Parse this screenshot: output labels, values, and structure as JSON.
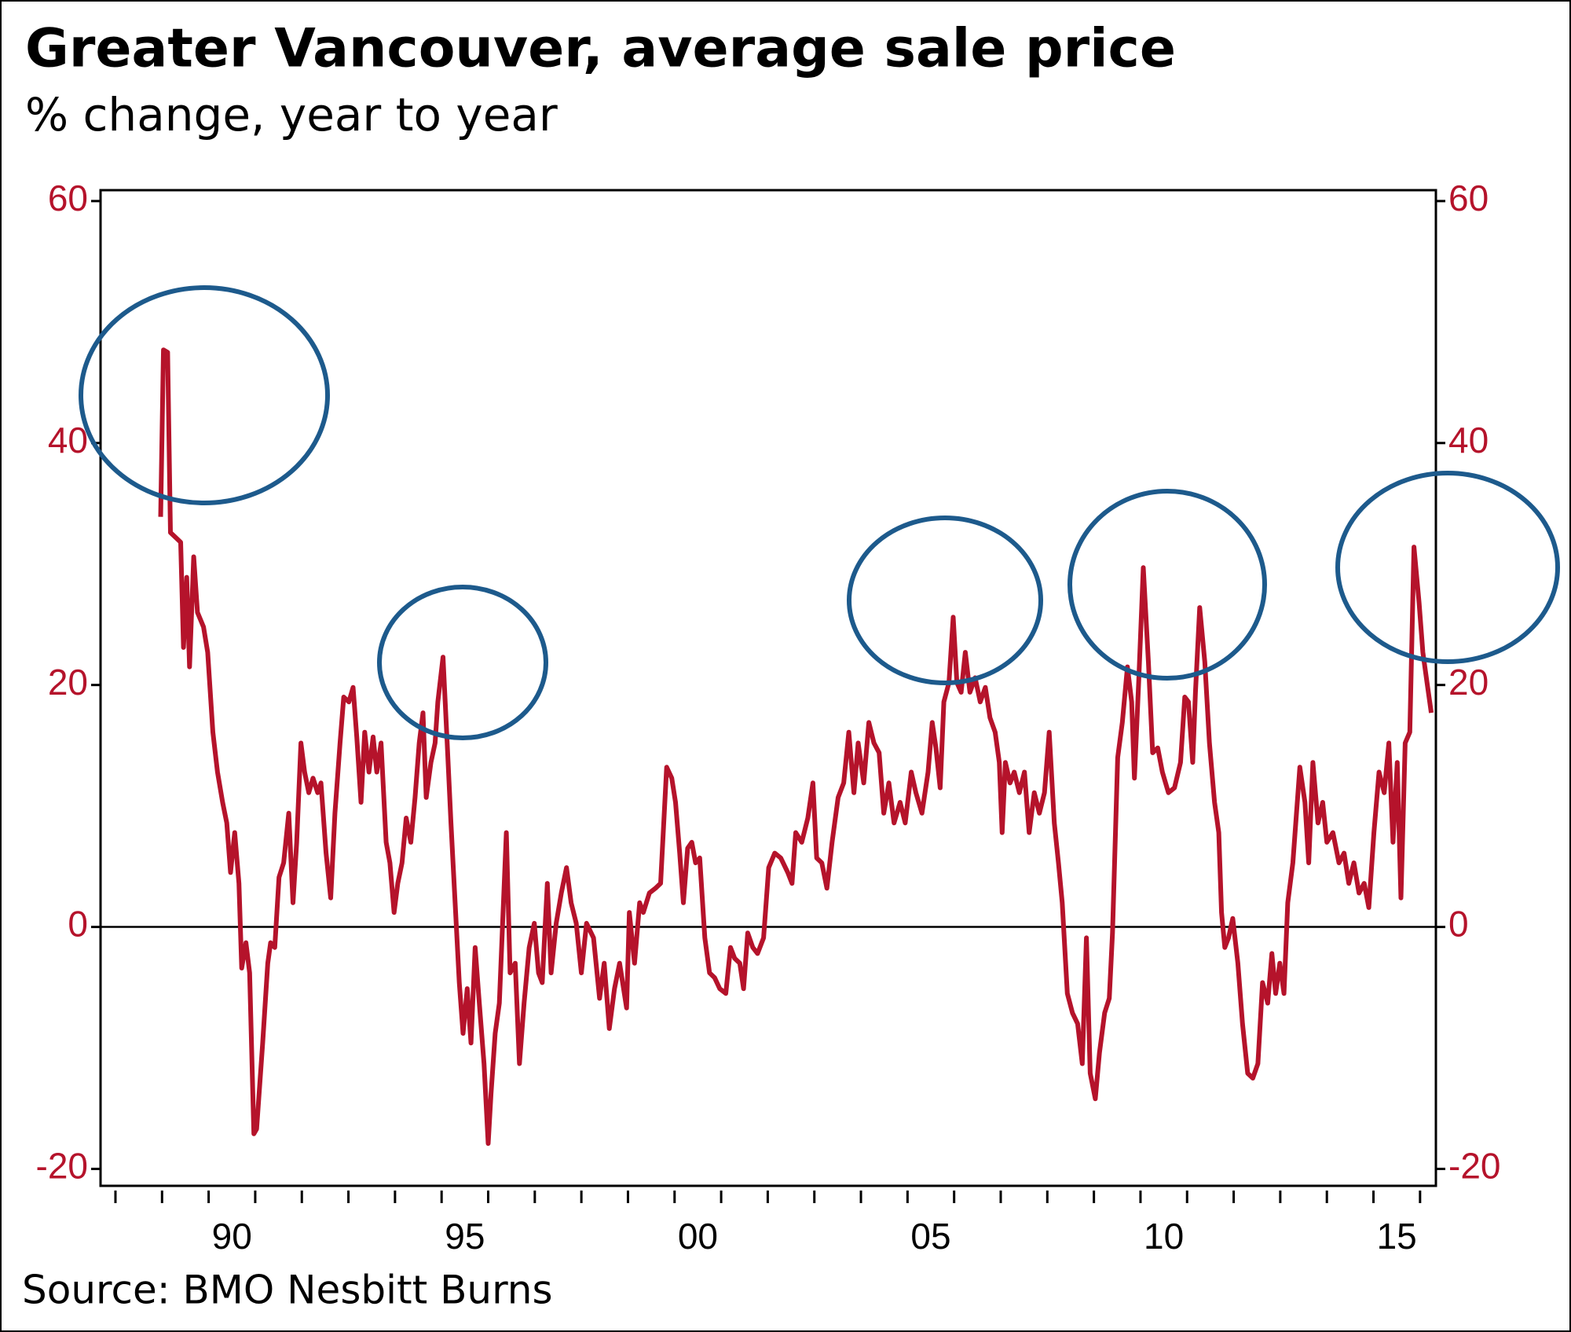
{
  "chart_data": {
    "type": "line",
    "title": "Greater Vancouver, average sale price",
    "subtitle": "% change, year to year",
    "source": "Source: BMO Nesbitt Burns",
    "color": "#b5132b",
    "x": [
      1988.97,
      1989.03,
      1989.12,
      1989.18,
      1989.29,
      1989.4,
      1989.46,
      1989.53,
      1989.59,
      1989.68,
      1989.76,
      1989.89,
      1989.98,
      1990.09,
      1990.19,
      1990.3,
      1990.39,
      1990.47,
      1990.56,
      1990.65,
      1990.71,
      1990.8,
      1990.88,
      1990.97,
      1991.03,
      1991.16,
      1991.27,
      1991.33,
      1991.42,
      1991.51,
      1991.61,
      1991.72,
      1991.81,
      1991.89,
      1991.98,
      1992.06,
      1992.15,
      1992.24,
      1992.34,
      1992.41,
      1992.52,
      1992.62,
      1992.71,
      1992.82,
      1992.9,
      1993.01,
      1993.1,
      1993.18,
      1993.27,
      1993.35,
      1993.44,
      1993.53,
      1993.61,
      1993.7,
      1993.81,
      1993.89,
      1993.98,
      1994.06,
      1994.15,
      1994.24,
      1994.34,
      1994.43,
      1994.52,
      1994.6,
      1994.67,
      1994.77,
      1994.86,
      1994.92,
      1995.03,
      1995.12,
      1995.2,
      1995.29,
      1995.38,
      1995.46,
      1995.55,
      1995.63,
      1995.72,
      1995.81,
      1995.91,
      1996.0,
      1996.06,
      1996.15,
      1996.24,
      1996.39,
      1996.47,
      1996.58,
      1996.67,
      1996.77,
      1996.88,
      1996.99,
      1997.08,
      1997.16,
      1997.27,
      1997.35,
      1997.46,
      1997.57,
      1997.68,
      1997.78,
      1997.89,
      1998.0,
      1998.11,
      1998.26,
      1998.39,
      1998.49,
      1998.6,
      1998.71,
      1998.82,
      1998.97,
      1999.03,
      1999.14,
      1999.25,
      1999.33,
      1999.46,
      1999.59,
      1999.7,
      1999.83,
      1999.94,
      2000.02,
      2000.11,
      2000.19,
      2000.28,
      2000.37,
      2000.45,
      2000.54,
      2000.65,
      2000.75,
      2000.86,
      2000.97,
      2001.1,
      2001.2,
      2001.29,
      2001.4,
      2001.48,
      2001.57,
      2001.68,
      2001.78,
      2001.91,
      2002.02,
      2002.15,
      2002.28,
      2002.43,
      2002.52,
      2002.6,
      2002.73,
      2002.86,
      2002.97,
      2003.05,
      2003.16,
      2003.27,
      2003.38,
      2003.51,
      2003.63,
      2003.74,
      2003.85,
      2003.94,
      2004.06,
      2004.17,
      2004.28,
      2004.39,
      2004.49,
      2004.6,
      2004.71,
      2004.84,
      2004.95,
      2005.08,
      2005.18,
      2005.31,
      2005.44,
      2005.53,
      2005.61,
      2005.7,
      2005.78,
      2005.89,
      2005.98,
      2006.06,
      2006.15,
      2006.24,
      2006.34,
      2006.45,
      2006.56,
      2006.67,
      2006.77,
      2006.88,
      2006.97,
      2007.03,
      2007.1,
      2007.2,
      2007.29,
      2007.4,
      2007.51,
      2007.61,
      2007.72,
      2007.83,
      2007.94,
      2008.04,
      2008.15,
      2008.24,
      2008.32,
      2008.43,
      2008.54,
      2008.65,
      2008.75,
      2008.84,
      2008.92,
      2009.03,
      2009.12,
      2009.23,
      2009.33,
      2009.4,
      2009.51,
      2009.61,
      2009.72,
      2009.81,
      2009.87,
      2009.96,
      2010.06,
      2010.17,
      2010.26,
      2010.37,
      2010.47,
      2010.6,
      2010.73,
      2010.86,
      2010.95,
      2011.03,
      2011.12,
      2011.18,
      2011.27,
      2011.38,
      2011.48,
      2011.59,
      2011.68,
      2011.74,
      2011.81,
      2011.89,
      2011.98,
      2012.09,
      2012.19,
      2012.3,
      2012.41,
      2012.52,
      2012.62,
      2012.73,
      2012.82,
      2012.9,
      2012.99,
      2013.08,
      2013.16,
      2013.27,
      2013.42,
      2013.53,
      2013.61,
      2013.7,
      2013.81,
      2013.91,
      2014.0,
      2014.13,
      2014.26,
      2014.37,
      2014.47,
      2014.58,
      2014.69,
      2014.8,
      2014.9,
      2015.01,
      2015.12,
      2015.23,
      2015.33,
      2015.42,
      2015.51,
      2015.59,
      2015.68,
      2015.78,
      2015.87,
      2015.98,
      2016.06,
      2016.15,
      2016.24
    ],
    "values": [
      33.9,
      47.7,
      47.5,
      32.6,
      32.2,
      31.8,
      23.1,
      28.9,
      21.5,
      30.6,
      26.0,
      24.8,
      22.7,
      16.1,
      12.8,
      10.3,
      8.6,
      4.5,
      7.8,
      3.6,
      -3.4,
      -1.3,
      -3.8,
      -17.1,
      -16.7,
      -9.6,
      -3.0,
      -1.3,
      -1.7,
      4.1,
      5.3,
      9.4,
      2.0,
      7.0,
      15.2,
      12.8,
      11.1,
      12.3,
      11.1,
      11.9,
      6.1,
      2.4,
      9.4,
      15.2,
      19.0,
      18.6,
      19.8,
      15.7,
      10.3,
      16.1,
      12.8,
      15.7,
      12.8,
      15.2,
      7.0,
      5.3,
      1.2,
      3.6,
      5.3,
      9.0,
      7.0,
      10.7,
      15.2,
      17.7,
      10.7,
      13.6,
      15.2,
      18.6,
      22.3,
      15.2,
      8.6,
      2.0,
      -4.6,
      -8.8,
      -5.1,
      -9.6,
      -1.7,
      -6.3,
      -11.3,
      -17.9,
      -13.8,
      -8.8,
      -6.3,
      7.8,
      -3.8,
      -3.0,
      -11.3,
      -6.3,
      -1.7,
      0.3,
      -3.8,
      -4.6,
      3.6,
      -3.8,
      0.3,
      2.8,
      4.9,
      2.0,
      0.3,
      -3.8,
      0.3,
      -0.9,
      -5.9,
      -3.0,
      -8.4,
      -5.1,
      -3.0,
      -6.7,
      1.2,
      -3.0,
      2.0,
      1.2,
      2.8,
      3.2,
      3.6,
      13.2,
      12.3,
      10.3,
      6.1,
      2.0,
      6.5,
      7.0,
      5.3,
      5.7,
      -0.9,
      -3.8,
      -4.2,
      -5.1,
      -5.5,
      -1.7,
      -2.6,
      -3.0,
      -5.1,
      -0.5,
      -1.7,
      -2.2,
      -0.9,
      4.9,
      6.1,
      5.7,
      4.5,
      3.6,
      7.8,
      7.0,
      9.0,
      11.9,
      5.7,
      5.3,
      3.2,
      7.0,
      10.7,
      11.9,
      16.1,
      11.1,
      15.2,
      11.9,
      16.9,
      15.2,
      14.4,
      9.4,
      11.9,
      8.6,
      10.3,
      8.6,
      12.8,
      11.1,
      9.4,
      12.8,
      16.9,
      14.8,
      11.5,
      18.6,
      20.2,
      25.6,
      20.2,
      19.4,
      22.7,
      19.4,
      20.6,
      18.6,
      19.8,
      17.3,
      16.1,
      13.6,
      7.8,
      13.6,
      11.9,
      12.8,
      11.1,
      12.8,
      7.8,
      11.1,
      9.4,
      11.1,
      16.1,
      8.6,
      5.3,
      2.0,
      -5.5,
      -7.1,
      -8.0,
      -11.3,
      -0.9,
      -12.1,
      -14.2,
      -10.4,
      -7.1,
      -5.9,
      -0.5,
      14.0,
      16.9,
      21.5,
      18.6,
      12.3,
      20.2,
      29.7,
      21.9,
      14.4,
      14.8,
      12.8,
      11.1,
      11.5,
      13.6,
      19.0,
      18.6,
      13.6,
      19.4,
      26.4,
      21.9,
      15.2,
      10.3,
      7.8,
      1.2,
      -1.7,
      -0.9,
      0.7,
      -3.0,
      -8.0,
      -12.1,
      -12.5,
      -11.3,
      -4.6,
      -6.3,
      -2.2,
      -5.5,
      -3.0,
      -5.5,
      2.0,
      5.3,
      13.2,
      10.3,
      5.3,
      13.6,
      8.6,
      10.3,
      7.0,
      7.8,
      5.3,
      6.1,
      3.6,
      5.3,
      2.8,
      3.6,
      1.6,
      7.8,
      12.8,
      11.1,
      15.2,
      7.0,
      13.6,
      2.4,
      15.2,
      16.1,
      31.4,
      26.8,
      22.7,
      20.2,
      17.7
    ],
    "xlim": [
      1987.68,
      2016.34
    ],
    "xticks": [
      {
        "value": 1990.5,
        "label": "90"
      },
      {
        "value": 1995.5,
        "label": "95"
      },
      {
        "value": 2000.5,
        "label": "00"
      },
      {
        "value": 2005.5,
        "label": "05"
      },
      {
        "value": 2010.5,
        "label": "10"
      },
      {
        "value": 2015.5,
        "label": "15"
      }
    ],
    "xminor_ticks": [
      1988,
      1989,
      1990,
      1991,
      1992,
      1993,
      1994,
      1995,
      1996,
      1997,
      1998,
      1999,
      2000,
      2001,
      2002,
      2003,
      2004,
      2005,
      2006,
      2007,
      2008,
      2009,
      2010,
      2011,
      2012,
      2013,
      2014,
      2015,
      2016
    ],
    "ylim": [
      -21.4,
      60.9
    ],
    "yticks": [
      -20,
      0,
      20,
      40,
      60
    ],
    "y2lim": [
      -21.4,
      60.9
    ],
    "y2ticks": [
      -20,
      0,
      20,
      40,
      60
    ],
    "zero_line": true
  }
}
